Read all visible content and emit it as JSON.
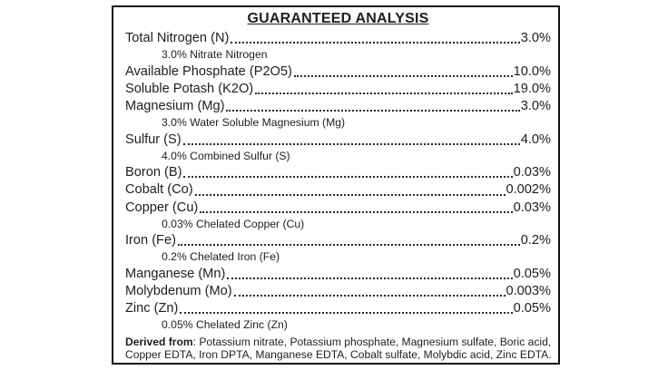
{
  "title": "GUARANTEED ANALYSIS",
  "analysis": {
    "rows": [
      {
        "type": "main",
        "label": "Total Nitrogen (N)",
        "value": "3.0%"
      },
      {
        "type": "sub",
        "label": "3.0% Nitrate Nitrogen"
      },
      {
        "type": "main",
        "label": "Available Phosphate (P2O5)",
        "value": "10.0%"
      },
      {
        "type": "main",
        "label": "Soluble Potash (K2O)",
        "value": "19.0%"
      },
      {
        "type": "main",
        "label": "Magnesium (Mg)",
        "value": "3.0%"
      },
      {
        "type": "sub",
        "label": "3.0% Water Soluble Magnesium (Mg)"
      },
      {
        "type": "main",
        "label": "Sulfur (S)",
        "value": "4.0%"
      },
      {
        "type": "sub",
        "label": "4.0% Combined Sulfur (S)"
      },
      {
        "type": "main",
        "label": "Boron (B)",
        "value": "0.03%"
      },
      {
        "type": "main",
        "label": "Cobalt (Co)",
        "value": "0.002%"
      },
      {
        "type": "main",
        "label": "Copper (Cu)",
        "value": "0.03%"
      },
      {
        "type": "sub",
        "label": "0.03% Chelated Copper (Cu)"
      },
      {
        "type": "main",
        "label": "Iron (Fe)",
        "value": "0.2%"
      },
      {
        "type": "sub",
        "label": "0.2% Chelated Iron (Fe)"
      },
      {
        "type": "main",
        "label": "Manganese (Mn)",
        "value": "0.05%"
      },
      {
        "type": "main",
        "label": "Molybdenum (Mo)",
        "value": "0.003%"
      },
      {
        "type": "main",
        "label": "Zinc (Zn)",
        "value": "0.05%"
      },
      {
        "type": "sub",
        "label": "0.05% Chelated Zinc (Zn)"
      }
    ]
  },
  "derived": {
    "lead": "Derived from",
    "line1_rest": ": Potassium nitrate, Potassium phosphate, Magnesium sulfate, Boric acid,",
    "line2": "Copper EDTA, Iron DPTA, Manganese EDTA, Cobalt sulfate, Molybdic acid, Zinc EDTA."
  },
  "colors": {
    "text": "#1e1e1e",
    "border": "#101010",
    "background": "#ffffff"
  }
}
